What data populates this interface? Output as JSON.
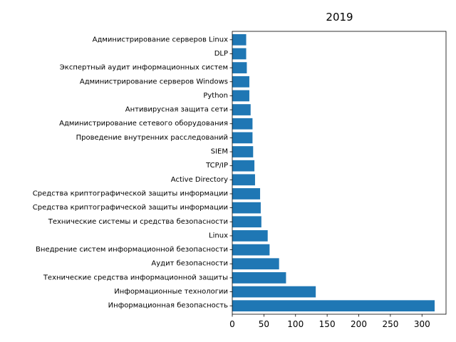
{
  "chart_data": {
    "type": "bar",
    "orientation": "horizontal",
    "title": "2019",
    "xlabel": "",
    "ylabel": "",
    "xlim": [
      0,
      338
    ],
    "xticks": [
      0,
      50,
      100,
      150,
      200,
      250,
      300
    ],
    "grid": false,
    "bar_color": "#1f77b4",
    "categories": [
      "Информационная безопасность",
      "Информационные технологии",
      "Технические средства информационной защиты",
      "Аудит безопасности",
      "Внедрение систем информационной безопасности",
      "Linux",
      "Технические системы и средства безопасности",
      "Средства криптографической защиты информации",
      "Средства криптографической защиты информации",
      "Active Directory",
      "TCP/IP",
      "SIEM",
      "Проведение внутренних расследований",
      "Администрирование сетевого оборудования",
      "Антивирусная защита сети",
      "Python",
      "Администрирование серверов Windows",
      "Экспертный аудит информационных систем",
      "DLP",
      "Администрирование серверов Linux"
    ],
    "values": [
      320,
      132,
      85,
      74,
      59,
      56,
      46,
      45,
      44,
      36,
      35,
      33,
      32,
      32,
      29,
      27,
      27,
      23,
      22,
      22
    ]
  }
}
